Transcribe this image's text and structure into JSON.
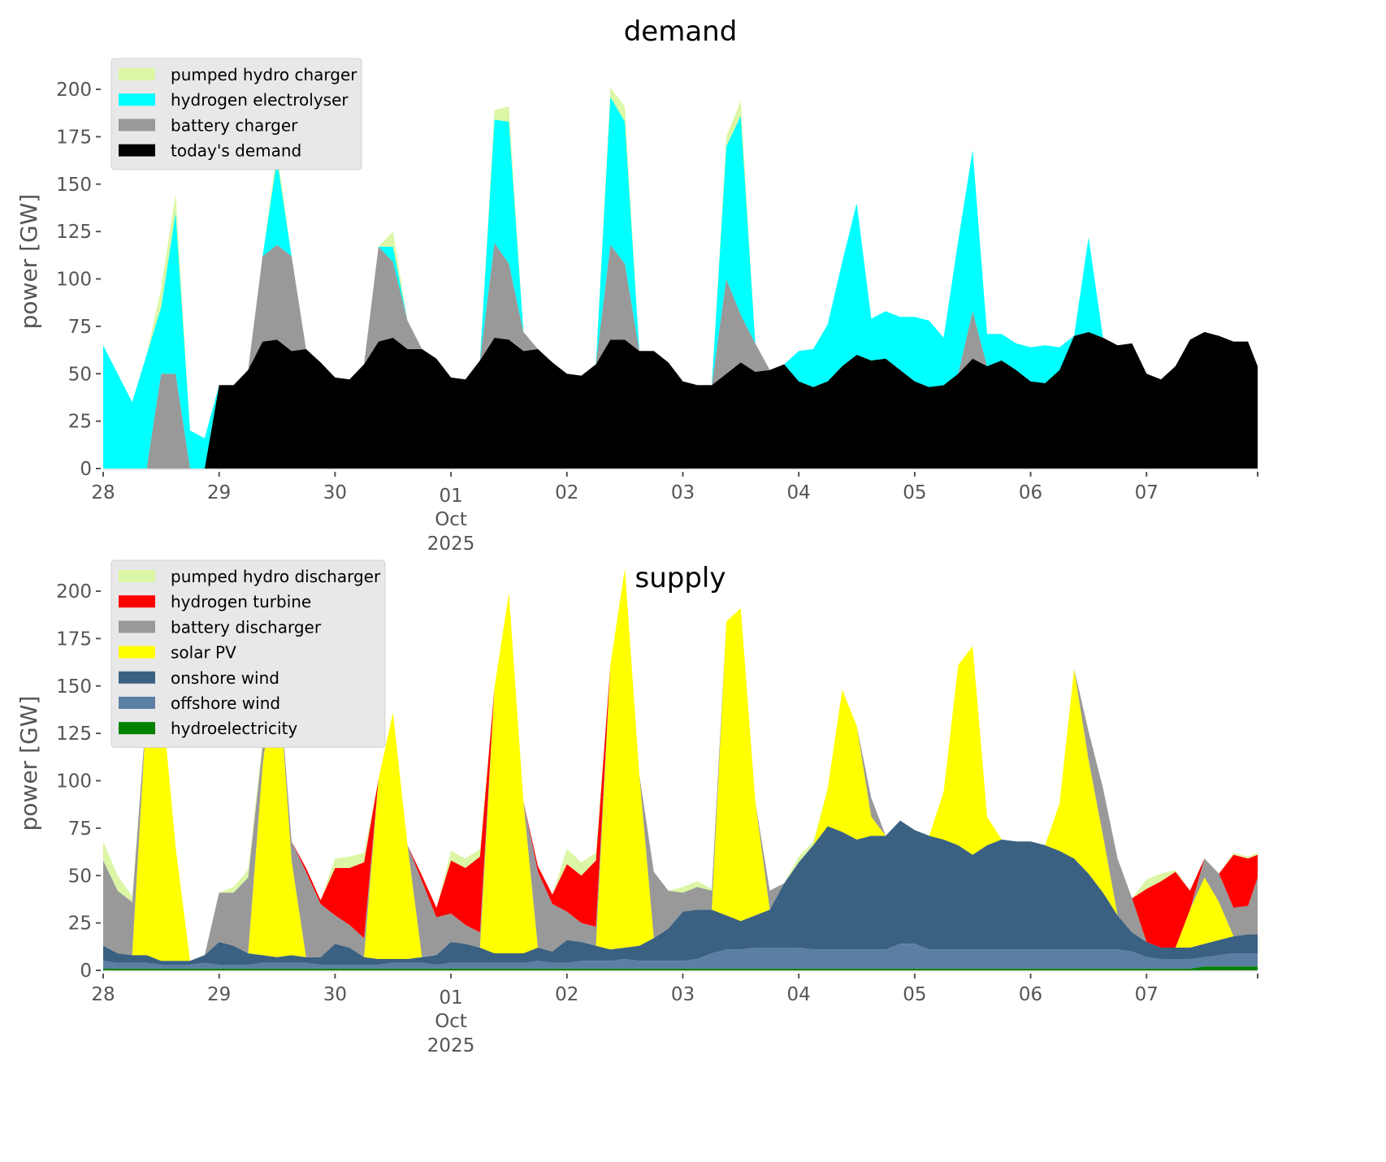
{
  "chart_data": [
    {
      "type": "area",
      "stacked": true,
      "title": "demand",
      "xlabel": "",
      "ylabel": "power [GW]",
      "ylim": [
        0,
        210
      ],
      "yticks": [
        0,
        25,
        50,
        75,
        100,
        125,
        150,
        175,
        200
      ],
      "xlim_days": [
        0,
        10
      ],
      "xticks": [
        {
          "day": 0,
          "label": "28"
        },
        {
          "day": 1,
          "label": "29"
        },
        {
          "day": 2,
          "label": "30"
        },
        {
          "day": 3,
          "label": "01",
          "sub1": "Oct",
          "sub2": "2025"
        },
        {
          "day": 4,
          "label": "02"
        },
        {
          "day": 5,
          "label": "03"
        },
        {
          "day": 6,
          "label": "04"
        },
        {
          "day": 7,
          "label": "05"
        },
        {
          "day": 8,
          "label": "06"
        },
        {
          "day": 9,
          "label": "07"
        }
      ],
      "legend": {
        "position": "top-left"
      },
      "x_step_hours": 3,
      "series": [
        {
          "name": "today's demand",
          "color": "#000000",
          "values": [
            0,
            0,
            0,
            0,
            0,
            0,
            0,
            0,
            44,
            44,
            52,
            67,
            68,
            62,
            63,
            56,
            48,
            47,
            55,
            67,
            69,
            63,
            63,
            58,
            48,
            47,
            57,
            69,
            68,
            62,
            63,
            56,
            50,
            49,
            55,
            68,
            68,
            62,
            62,
            56,
            46,
            44,
            44,
            50,
            56,
            51,
            52,
            55,
            46,
            43,
            46,
            54,
            60,
            57,
            58,
            52,
            46,
            43,
            44,
            50,
            58,
            54,
            57,
            52,
            46,
            45,
            52,
            70,
            72,
            69,
            65,
            66,
            50,
            47,
            54,
            68,
            72,
            70,
            67,
            67,
            54
          ]
        },
        {
          "name": "battery charger",
          "color": "#999999",
          "values": [
            0,
            0,
            0,
            0,
            50,
            50,
            0,
            0,
            0,
            0,
            0,
            45,
            50,
            50,
            0,
            0,
            0,
            0,
            0,
            50,
            40,
            15,
            0,
            0,
            0,
            0,
            0,
            50,
            40,
            10,
            0,
            0,
            0,
            0,
            0,
            50,
            40,
            0,
            0,
            0,
            0,
            0,
            0,
            50,
            25,
            15,
            0,
            0,
            0,
            0,
            0,
            0,
            0,
            0,
            0,
            0,
            0,
            0,
            0,
            0,
            25,
            0,
            0,
            0,
            0,
            0,
            0,
            0,
            0,
            0,
            0,
            0,
            0,
            0,
            0,
            0,
            0,
            0,
            0,
            0,
            0
          ]
        },
        {
          "name": "hydrogen electrolyser",
          "color": "#00ffff",
          "values": [
            65,
            50,
            35,
            60,
            35,
            85,
            20,
            16,
            0,
            0,
            0,
            0,
            45,
            0,
            0,
            0,
            0,
            0,
            0,
            0,
            8,
            0,
            0,
            0,
            0,
            0,
            0,
            65,
            75,
            0,
            0,
            0,
            0,
            0,
            0,
            78,
            75,
            0,
            0,
            0,
            0,
            0,
            0,
            70,
            105,
            0,
            0,
            0,
            16,
            20,
            30,
            55,
            80,
            22,
            25,
            28,
            34,
            35,
            25,
            70,
            85,
            17,
            14,
            14,
            18,
            20,
            12,
            0,
            50,
            0,
            0,
            0,
            0,
            0,
            0,
            0,
            0,
            0,
            0,
            0,
            0
          ]
        },
        {
          "name": "pumped hydro charger",
          "color": "#dbf6a5",
          "values": [
            0,
            0,
            0,
            0,
            10,
            10,
            0,
            0,
            0,
            0,
            0,
            0,
            5,
            0,
            0,
            0,
            0,
            0,
            0,
            0,
            8,
            0,
            0,
            0,
            0,
            0,
            0,
            5,
            8,
            0,
            0,
            0,
            0,
            0,
            0,
            5,
            8,
            0,
            0,
            0,
            0,
            0,
            0,
            5,
            8,
            0,
            0,
            0,
            0,
            0,
            0,
            0,
            0,
            0,
            0,
            0,
            0,
            0,
            0,
            0,
            0,
            0,
            0,
            0,
            0,
            0,
            0,
            0,
            0,
            0,
            0,
            0,
            0,
            0,
            0,
            0,
            0,
            0,
            0,
            0,
            0
          ]
        }
      ]
    },
    {
      "type": "area",
      "stacked": true,
      "title": "supply",
      "xlabel": "",
      "ylabel": "power [GW]",
      "ylim": [
        0,
        210
      ],
      "yticks": [
        0,
        25,
        50,
        75,
        100,
        125,
        150,
        175,
        200
      ],
      "xlim_days": [
        0,
        10
      ],
      "xticks": [
        {
          "day": 0,
          "label": "28"
        },
        {
          "day": 1,
          "label": "29"
        },
        {
          "day": 2,
          "label": "30"
        },
        {
          "day": 3,
          "label": "01",
          "sub1": "Oct",
          "sub2": "2025"
        },
        {
          "day": 4,
          "label": "02"
        },
        {
          "day": 5,
          "label": "03"
        },
        {
          "day": 6,
          "label": "04"
        },
        {
          "day": 7,
          "label": "05"
        },
        {
          "day": 8,
          "label": "06"
        },
        {
          "day": 9,
          "label": "07"
        }
      ],
      "legend": {
        "position": "top-left"
      },
      "x_step_hours": 3,
      "series": [
        {
          "name": "hydroelectricity",
          "color": "#008000",
          "values": [
            1,
            1,
            1,
            1,
            1,
            1,
            1,
            1,
            1,
            1,
            1,
            1,
            1,
            1,
            1,
            1,
            1,
            1,
            1,
            1,
            1,
            1,
            1,
            1,
            1,
            1,
            1,
            1,
            1,
            1,
            1,
            1,
            1,
            1,
            1,
            1,
            1,
            1,
            1,
            1,
            1,
            1,
            1,
            1,
            1,
            1,
            1,
            1,
            1,
            1,
            1,
            1,
            1,
            1,
            1,
            1,
            1,
            1,
            1,
            1,
            1,
            1,
            1,
            1,
            1,
            1,
            1,
            1,
            1,
            1,
            1,
            1,
            1,
            1,
            1,
            1,
            2,
            2,
            2,
            2,
            2
          ]
        },
        {
          "name": "offshore wind",
          "color": "#5b7fa3",
          "values": [
            4,
            3,
            3,
            3,
            2,
            2,
            2,
            3,
            2,
            2,
            2,
            3,
            3,
            3,
            3,
            2,
            2,
            2,
            2,
            2,
            3,
            3,
            3,
            2,
            3,
            3,
            3,
            3,
            3,
            3,
            4,
            3,
            3,
            4,
            4,
            4,
            5,
            4,
            4,
            4,
            4,
            5,
            8,
            10,
            10,
            11,
            11,
            11,
            11,
            10,
            10,
            10,
            10,
            10,
            10,
            13,
            13,
            10,
            10,
            10,
            10,
            10,
            10,
            10,
            10,
            10,
            10,
            10,
            10,
            10,
            10,
            9,
            6,
            5,
            5,
            5,
            5,
            6,
            7,
            7,
            7
          ]
        },
        {
          "name": "onshore wind",
          "color": "#3b6182",
          "values": [
            8,
            5,
            4,
            4,
            2,
            2,
            2,
            4,
            12,
            10,
            6,
            4,
            3,
            4,
            3,
            4,
            11,
            9,
            4,
            3,
            2,
            2,
            3,
            5,
            11,
            10,
            8,
            5,
            5,
            5,
            7,
            6,
            12,
            10,
            8,
            6,
            6,
            8,
            12,
            17,
            26,
            26,
            23,
            18,
            15,
            17,
            20,
            34,
            45,
            55,
            65,
            62,
            58,
            60,
            60,
            65,
            60,
            60,
            58,
            55,
            50,
            55,
            58,
            57,
            57,
            55,
            52,
            48,
            40,
            30,
            18,
            10,
            8,
            6,
            6,
            6,
            7,
            8,
            9,
            10,
            10
          ]
        },
        {
          "name": "solar PV",
          "color": "#ffff00",
          "values": [
            0,
            0,
            0,
            130,
            143,
            60,
            0,
            0,
            0,
            0,
            0,
            100,
            160,
            50,
            0,
            0,
            0,
            0,
            0,
            95,
            130,
            60,
            0,
            0,
            0,
            0,
            0,
            140,
            190,
            80,
            0,
            0,
            0,
            0,
            0,
            150,
            200,
            90,
            0,
            0,
            0,
            0,
            0,
            155,
            165,
            60,
            0,
            0,
            0,
            0,
            20,
            75,
            60,
            10,
            0,
            0,
            0,
            0,
            25,
            95,
            110,
            15,
            0,
            0,
            0,
            0,
            25,
            100,
            60,
            30,
            0,
            0,
            0,
            0,
            0,
            20,
            35,
            20,
            0,
            0,
            0
          ]
        },
        {
          "name": "battery discharger",
          "color": "#999999",
          "values": [
            45,
            33,
            28,
            0,
            0,
            0,
            0,
            0,
            26,
            28,
            40,
            10,
            0,
            10,
            45,
            28,
            15,
            12,
            10,
            0,
            0,
            0,
            40,
            20,
            15,
            10,
            8,
            0,
            0,
            0,
            40,
            25,
            15,
            10,
            10,
            0,
            0,
            0,
            35,
            20,
            10,
            12,
            10,
            0,
            0,
            0,
            10,
            0,
            0,
            0,
            0,
            0,
            0,
            10,
            0,
            0,
            0,
            0,
            0,
            0,
            0,
            0,
            0,
            0,
            0,
            0,
            0,
            0,
            15,
            25,
            30,
            18,
            0,
            0,
            0,
            0,
            10,
            15,
            15,
            15,
            30
          ]
        },
        {
          "name": "hydrogen turbine",
          "color": "#ff0000",
          "values": [
            0,
            0,
            0,
            0,
            0,
            0,
            0,
            0,
            0,
            0,
            0,
            0,
            0,
            0,
            2,
            2,
            25,
            30,
            40,
            0,
            0,
            0,
            3,
            5,
            28,
            30,
            40,
            0,
            0,
            0,
            3,
            5,
            25,
            25,
            35,
            0,
            0,
            0,
            0,
            0,
            0,
            0,
            0,
            0,
            0,
            0,
            0,
            0,
            0,
            0,
            0,
            0,
            0,
            0,
            0,
            0,
            0,
            0,
            0,
            0,
            0,
            0,
            0,
            0,
            0,
            0,
            0,
            0,
            0,
            0,
            0,
            0,
            28,
            35,
            40,
            10,
            0,
            0,
            28,
            25,
            12
          ]
        },
        {
          "name": "pumped hydro discharger",
          "color": "#dbf6a5",
          "values": [
            10,
            8,
            3,
            0,
            0,
            0,
            0,
            0,
            0,
            3,
            4,
            3,
            0,
            0,
            0,
            0,
            5,
            6,
            5,
            0,
            0,
            0,
            0,
            0,
            5,
            5,
            4,
            0,
            0,
            0,
            0,
            0,
            8,
            7,
            4,
            0,
            0,
            0,
            0,
            0,
            3,
            3,
            1,
            0,
            0,
            0,
            0,
            0,
            3,
            2,
            0,
            0,
            0,
            0,
            0,
            0,
            0,
            0,
            0,
            0,
            0,
            0,
            0,
            0,
            0,
            0,
            0,
            0,
            0,
            0,
            0,
            0,
            5,
            4,
            1,
            0,
            0,
            0,
            1,
            1,
            1
          ]
        }
      ]
    }
  ],
  "legends": [
    [
      "pumped hydro charger",
      "hydrogen electrolyser",
      "battery charger",
      "today's demand"
    ],
    [
      "pumped hydro discharger",
      "hydrogen turbine",
      "battery discharger",
      "solar PV",
      "onshore wind",
      "offshore wind",
      "hydroelectricity"
    ]
  ]
}
